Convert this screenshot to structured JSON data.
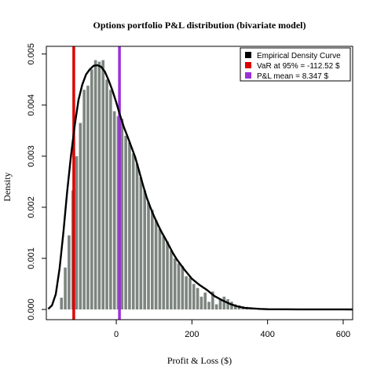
{
  "chart_data": {
    "type": "bar",
    "title": "Options portfolio P&L distribution (bivariate model)",
    "xlabel": "Profit & Loss ($)",
    "ylabel": "Density",
    "xlim": [
      -185,
      625
    ],
    "ylim": [
      -0.0002,
      0.00515
    ],
    "x_ticks": [
      0,
      200,
      400,
      600
    ],
    "x_tick_labels": [
      "0",
      "200",
      "400",
      "600"
    ],
    "y_ticks": [
      0.0,
      0.001,
      0.002,
      0.003,
      0.004,
      0.005
    ],
    "y_tick_labels": [
      "0.000",
      "0.001",
      "0.002",
      "0.003",
      "0.004",
      "0.005"
    ],
    "grid": false,
    "legend_position": "top-right",
    "bin_width": 10,
    "bins_start": [
      -150,
      -140,
      -130,
      -120,
      -110,
      -100,
      -90,
      -80,
      -70,
      -60,
      -50,
      -40,
      -30,
      -20,
      -10,
      0,
      10,
      20,
      30,
      40,
      50,
      60,
      70,
      80,
      90,
      100,
      110,
      120,
      130,
      140,
      150,
      160,
      170,
      180,
      190,
      200,
      210,
      220,
      230,
      240,
      250,
      260,
      270,
      280,
      290,
      300,
      310,
      320,
      330,
      340,
      350,
      360,
      370,
      380,
      390
    ],
    "densities": [
      0.00023,
      0.00082,
      0.00145,
      0.00233,
      0.003,
      0.00365,
      0.0043,
      0.00438,
      0.0047,
      0.00488,
      0.00485,
      0.00488,
      0.0045,
      0.0043,
      0.00388,
      0.00378,
      0.00373,
      0.0034,
      0.00327,
      0.00305,
      0.00285,
      0.00258,
      0.00233,
      0.0021,
      0.00195,
      0.00175,
      0.00158,
      0.00143,
      0.00133,
      0.00115,
      0.001,
      0.0009,
      0.00085,
      0.00065,
      0.00062,
      0.0005,
      0.00042,
      0.00025,
      0.00033,
      0.00015,
      0.00035,
      0.0001,
      0.0002,
      0.00025,
      0.0002,
      0.00015,
      0.0001,
      8e-05,
      6e-05,
      5e-05,
      4e-05,
      3e-05,
      2e-05,
      2e-05,
      1e-05
    ],
    "density_curve": {
      "x": [
        -180,
        -170,
        -160,
        -150,
        -140,
        -130,
        -120,
        -110,
        -100,
        -90,
        -80,
        -70,
        -60,
        -50,
        -40,
        -30,
        -20,
        -10,
        0,
        10,
        20,
        30,
        40,
        50,
        60,
        70,
        80,
        90,
        100,
        110,
        120,
        130,
        140,
        150,
        160,
        170,
        180,
        190,
        200,
        220,
        240,
        260,
        280,
        300,
        320,
        340,
        360,
        380,
        400,
        450,
        500,
        550,
        600,
        625
      ],
      "y": [
        1e-05,
        8e-05,
        0.0003,
        0.0008,
        0.0015,
        0.0023,
        0.003,
        0.0036,
        0.0041,
        0.0044,
        0.0046,
        0.0047,
        0.00477,
        0.00478,
        0.00475,
        0.00465,
        0.00448,
        0.00428,
        0.00405,
        0.0038,
        0.00357,
        0.00338,
        0.00318,
        0.00298,
        0.00272,
        0.00245,
        0.0022,
        0.002,
        0.00182,
        0.00166,
        0.00151,
        0.00138,
        0.00124,
        0.0011,
        0.00098,
        0.00088,
        0.00078,
        0.00069,
        0.0006,
        0.00048,
        0.00038,
        0.00026,
        0.00018,
        0.00011,
        6e-05,
        3e-05,
        2e-05,
        1e-05,
        5e-06,
        2e-06,
        1e-06,
        5e-07,
        2e-07,
        0.0
      ]
    },
    "reference_lines": [
      {
        "label": "VaR at 95% = -112.52  $",
        "x": -112.52,
        "color": "#dd0000"
      },
      {
        "label": "P&L mean = 8.347 $",
        "x": 8.347,
        "color": "#9b30d9"
      }
    ],
    "legend": [
      {
        "label": "Empirical Density Curve",
        "color": "#000000"
      },
      {
        "label": "VaR at 95% = -112.52  $",
        "color": "#dd0000"
      },
      {
        "label": "P&L mean = 8.347 $",
        "color": "#9b30d9"
      }
    ],
    "colors": {
      "bars": "#7d8580",
      "curve": "#000000",
      "axis": "#000000"
    }
  }
}
